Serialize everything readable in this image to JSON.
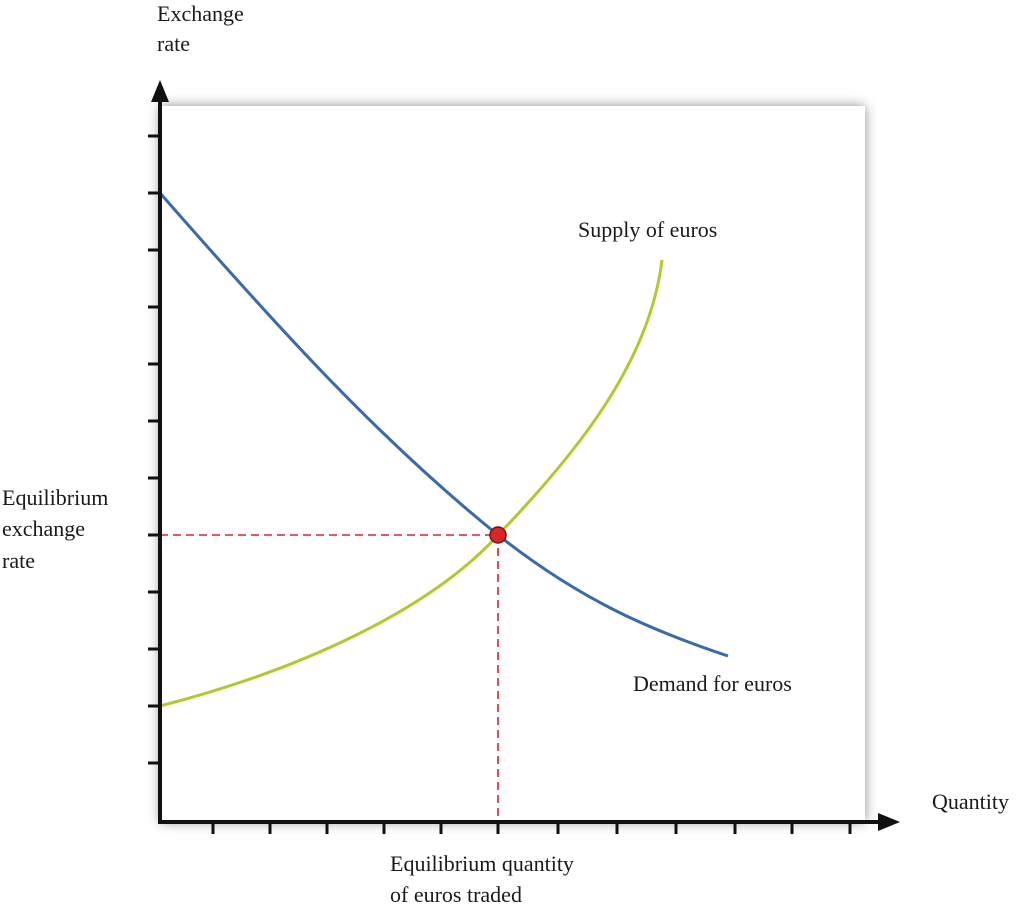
{
  "axes": {
    "y_label": [
      "Exchange",
      "rate"
    ],
    "x_label": "Quantity"
  },
  "curves": {
    "supply": "Supply of euros",
    "demand": "Demand for euros"
  },
  "equilibrium": {
    "price_label": [
      "Equilibrium",
      "exchange",
      "rate"
    ],
    "quantity_label": [
      "Equilibrium quantity",
      "of euros traded"
    ]
  }
}
